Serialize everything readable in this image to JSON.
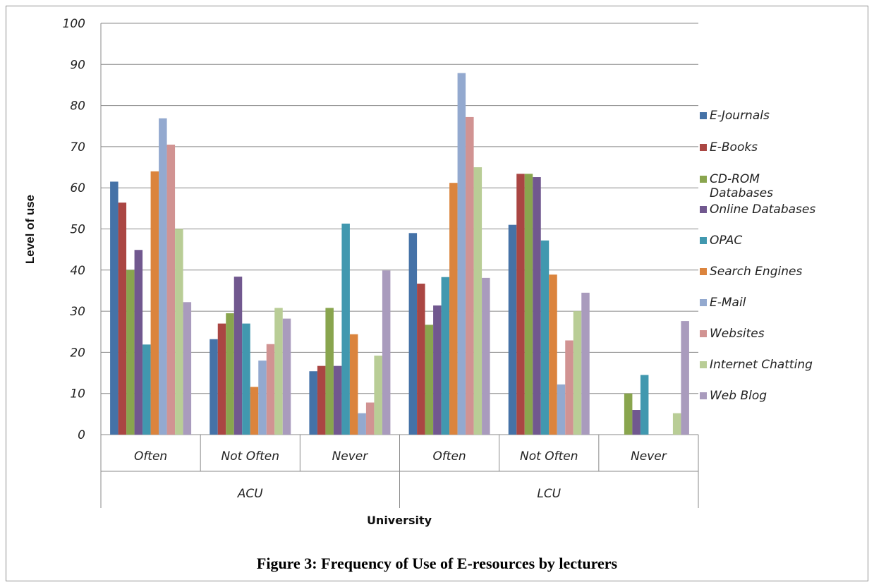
{
  "caption": "Figure 3: Frequency of Use of E-resources by lecturers",
  "chart_data": {
    "type": "bar",
    "title": "",
    "xlabel": "University",
    "ylabel": "Level of use",
    "ylim": [
      0,
      100
    ],
    "yticks": [
      "0",
      "10",
      "20",
      "30",
      "40",
      "50",
      "60",
      "70",
      "80",
      "90",
      "100"
    ],
    "grid": true,
    "legend_position": "right",
    "groups": [
      {
        "label": "ACU",
        "categories": [
          "Often",
          "Not Often",
          "Never"
        ]
      },
      {
        "label": "LCU",
        "categories": [
          "Often",
          "Not Often",
          "Never"
        ]
      }
    ],
    "categories": [
      "Often",
      "Not Often",
      "Never",
      "Often",
      "Not Often",
      "Never"
    ],
    "series": [
      {
        "name": "E-Journals",
        "color": "#4572a7",
        "values": [
          61.5,
          23.2,
          15.4,
          49.0,
          51.0,
          0
        ]
      },
      {
        "name": "E-Books",
        "color": "#aa4643",
        "values": [
          56.4,
          27.0,
          16.7,
          36.7,
          63.4,
          0
        ]
      },
      {
        "name": "CD-ROM Databases",
        "color": "#89a54e",
        "values": [
          40.0,
          29.5,
          30.8,
          26.7,
          63.4,
          10.0
        ]
      },
      {
        "name": "Online Databases",
        "color": "#71588f",
        "values": [
          44.9,
          38.4,
          16.7,
          31.4,
          62.6,
          6.0
        ]
      },
      {
        "name": "OPAC",
        "color": "#4198af",
        "values": [
          21.9,
          27.0,
          51.3,
          38.3,
          47.2,
          14.5
        ]
      },
      {
        "name": "Search Engines",
        "color": "#db843d",
        "values": [
          64.0,
          11.6,
          24.4,
          61.2,
          38.9,
          0
        ]
      },
      {
        "name": "E-Mail",
        "color": "#93a9cf",
        "values": [
          76.9,
          18.0,
          5.2,
          87.9,
          12.2,
          0
        ]
      },
      {
        "name": "Websites",
        "color": "#d19392",
        "values": [
          70.5,
          22.0,
          7.8,
          77.2,
          22.9,
          0
        ]
      },
      {
        "name": "Internet Chatting",
        "color": "#b9cd96",
        "values": [
          50.0,
          30.8,
          19.2,
          65.0,
          30.0,
          5.2
        ]
      },
      {
        "name": "Web Blog",
        "color": "#a99bbd",
        "values": [
          32.2,
          28.2,
          39.9,
          38.1,
          34.5,
          27.6
        ]
      }
    ]
  }
}
